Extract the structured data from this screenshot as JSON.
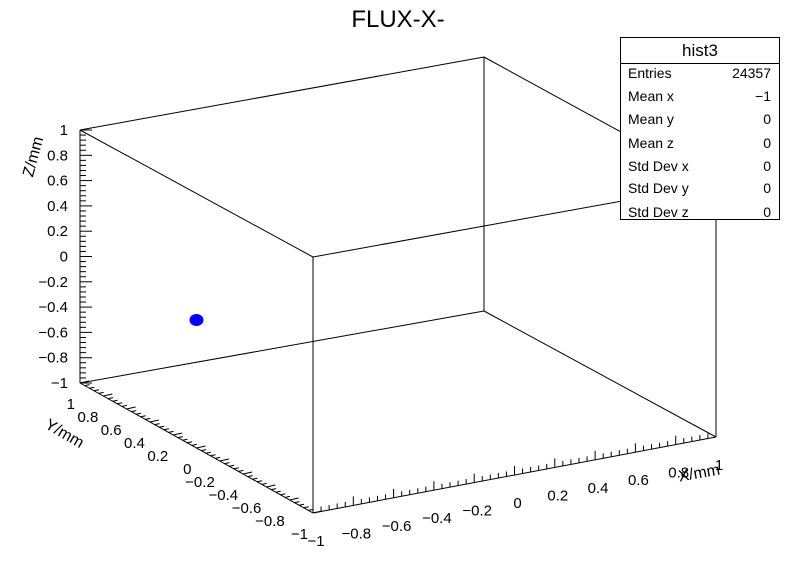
{
  "title": "FLUX-X-",
  "stats_box": {
    "name": "hist3",
    "rows": [
      {
        "label": "Entries",
        "value": "24357"
      },
      {
        "label": "Mean x",
        "value": "−1"
      },
      {
        "label": "Mean y",
        "value": "0"
      },
      {
        "label": "Mean z",
        "value": "0"
      },
      {
        "label": "Std Dev x",
        "value": "0"
      },
      {
        "label": "Std Dev y",
        "value": "0"
      },
      {
        "label": "Std Dev z",
        "value": "0"
      }
    ]
  },
  "chart_data": {
    "type": "scatter",
    "title": "FLUX-X-",
    "xlabel": "X/mm",
    "ylabel": "Y/mm",
    "zlabel": "Z/mm",
    "xlim": [
      -1,
      1
    ],
    "ylim": [
      -1,
      1
    ],
    "zlim": [
      -1,
      1
    ],
    "x_ticks": [
      "−1",
      "−0.8",
      "−0.6",
      "−0.4",
      "−0.2",
      "0",
      "0.2",
      "0.4",
      "0.6",
      "0.8",
      "1"
    ],
    "y_ticks": [
      "−1",
      "−0.8",
      "−0.6",
      "−0.4",
      "−0.2",
      "0",
      "0.2",
      "0.4",
      "0.6",
      "0.8",
      "1"
    ],
    "z_ticks": [
      "−1",
      "−0.8",
      "−0.6",
      "−0.4",
      "−0.2",
      "0",
      "0.2",
      "0.4",
      "0.6",
      "0.8",
      "1"
    ],
    "points": [
      {
        "x": -1,
        "y": 0,
        "z": 0
      }
    ],
    "point_color": "#0000ff",
    "grid": false
  }
}
